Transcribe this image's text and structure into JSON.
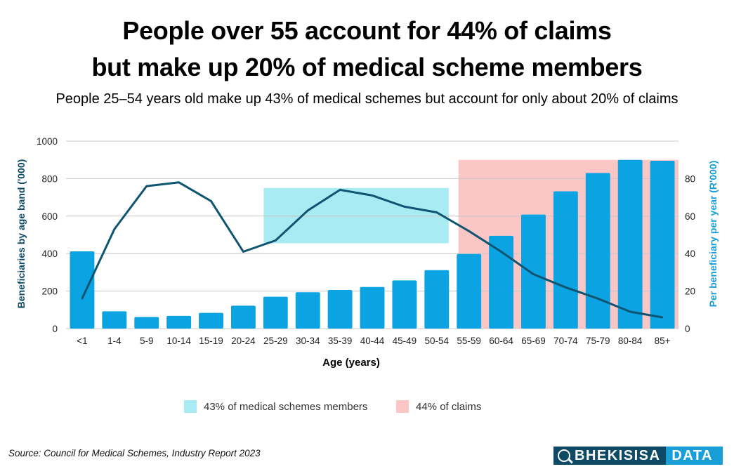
{
  "header": {
    "title_line1": "People over 55 account for 44% of claims",
    "title_line2": "but make up 20% of  medical scheme members",
    "subtitle": "People 25–54 years old make up 43% of medical schemes but account for only about 20% of claims"
  },
  "chart_data": {
    "type": "bar",
    "xlabel": "Age (years)",
    "ylabel_left": "Beneficiaries by age band ('000)",
    "ylabel_right": "Per beneficiary per year (R'000)",
    "ylim_left": [
      0,
      1000
    ],
    "yticks_left": [
      "0",
      "200",
      "400",
      "600",
      "800",
      "1000"
    ],
    "ylim_right": [
      0,
      100
    ],
    "yticks_right": [
      "0",
      "20",
      "40",
      "60",
      "80"
    ],
    "categories": [
      "<1",
      "1-4",
      "5-9",
      "10-14",
      "15-19",
      "20-24",
      "25-29",
      "30-34",
      "35-39",
      "40-44",
      "45-49",
      "50-54",
      "55-59",
      "60-64",
      "65-69",
      "70-74",
      "75-79",
      "80-84",
      "85+"
    ],
    "bars": {
      "axis": "left",
      "values": [
        412,
        92,
        62,
        68,
        84,
        122,
        170,
        194,
        206,
        222,
        257,
        312,
        398,
        495,
        608,
        732,
        830,
        900,
        895
      ],
      "color": "#0ba3e2"
    },
    "line": {
      "axis": "right",
      "values": [
        16,
        53,
        76,
        78,
        68,
        41,
        47,
        63,
        74,
        71,
        65,
        62,
        52,
        41,
        29,
        22,
        16,
        9,
        6
      ],
      "color": "#0f5470"
    },
    "highlights": [
      {
        "label": "43% of medical schemes members",
        "from": "25-29",
        "to": "50-54",
        "range_left": [
          455,
          750
        ],
        "color": "#a9ebf3"
      },
      {
        "label": "44% of claims",
        "from": "55-59",
        "to": "85+",
        "range_left": [
          0,
          900
        ],
        "color": "#fbc6c6"
      }
    ],
    "grid": "horizontal",
    "legend_position": "bottom"
  },
  "footer": {
    "source": "Source: Council for Medical Schemes, Industry Report 2023",
    "logo_left": "BHEKISISA",
    "logo_right": "DATA"
  }
}
